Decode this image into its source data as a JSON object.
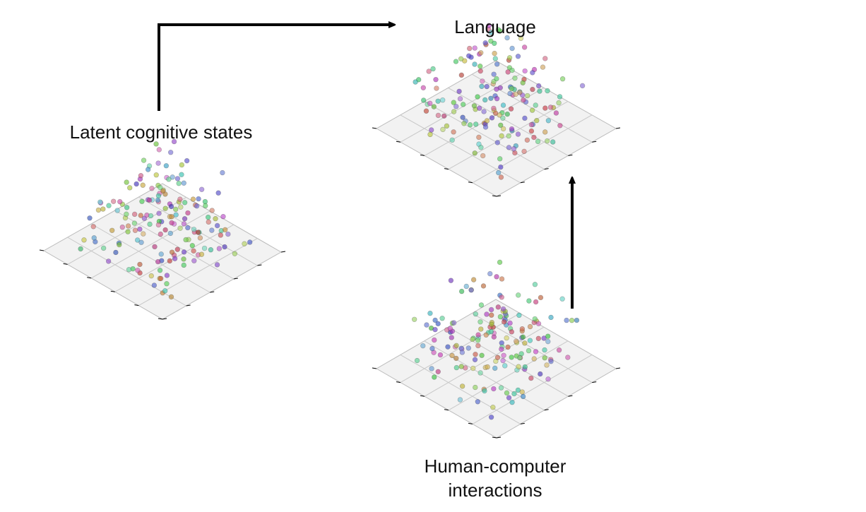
{
  "nodes": [
    {
      "label": "Latent cognitive states"
    },
    {
      "label": "Language"
    },
    {
      "label": "Human-computer interactions"
    }
  ]
}
